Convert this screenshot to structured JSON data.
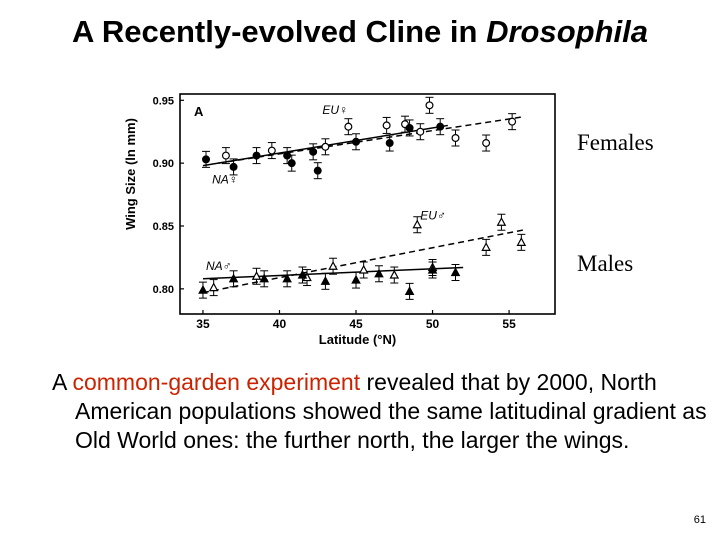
{
  "slide": {
    "title_main": "A Recently-evolved Cline in ",
    "title_italic": "Drosophila",
    "label_females": "Females",
    "label_males": "Males",
    "body_pre": "A ",
    "body_highlight": "common-garden experiment",
    "body_post": " revealed that by 2000, North American populations showed the same latitudinal gradient as Old World ones: the further north, the larger the wings.",
    "page_number": "61",
    "highlight_color": "#cc2200"
  },
  "chart_data": {
    "type": "scatter",
    "panel_letter": "A",
    "xlabel": "Latitude (°N)",
    "ylabel": "Wing Size (ln mm)",
    "xlim": [
      33.5,
      58
    ],
    "ylim": [
      0.78,
      0.955
    ],
    "xticks": [
      35,
      40,
      45,
      50,
      55
    ],
    "yticks": [
      0.8,
      0.85,
      0.9,
      0.95
    ],
    "xtick_labels": [
      "35",
      "40",
      "45",
      "50",
      "55"
    ],
    "ytick_labels": [
      "0.80",
      "0.85",
      "0.90",
      "0.95"
    ],
    "grid": false,
    "series": [
      {
        "name": "EU♀",
        "marker": "circle-open",
        "line": "dashed",
        "points": [
          [
            36.5,
            0.906
          ],
          [
            39.5,
            0.91
          ],
          [
            43,
            0.913
          ],
          [
            44.5,
            0.929
          ],
          [
            47,
            0.93
          ],
          [
            48.2,
            0.931
          ],
          [
            49.2,
            0.925
          ],
          [
            49.8,
            0.946
          ],
          [
            51.5,
            0.92
          ],
          [
            53.5,
            0.916
          ],
          [
            55.2,
            0.933
          ]
        ],
        "fit": [
          [
            36,
            0.9
          ],
          [
            56,
            0.937
          ]
        ]
      },
      {
        "name": "NA♀",
        "marker": "circle-filled",
        "line": "solid",
        "points": [
          [
            35.2,
            0.903
          ],
          [
            37,
            0.897
          ],
          [
            38.5,
            0.906
          ],
          [
            40.5,
            0.906
          ],
          [
            40.8,
            0.9
          ],
          [
            42.2,
            0.909
          ],
          [
            42.5,
            0.894
          ],
          [
            45,
            0.917
          ],
          [
            47.2,
            0.916
          ],
          [
            48.5,
            0.928
          ],
          [
            50.5,
            0.929
          ]
        ],
        "fit": [
          [
            35,
            0.898
          ],
          [
            51,
            0.93
          ]
        ]
      },
      {
        "name": "EU♂",
        "marker": "triangle-open",
        "line": "dashed",
        "points": [
          [
            35.7,
            0.801
          ],
          [
            38.5,
            0.81
          ],
          [
            41.8,
            0.809
          ],
          [
            43.5,
            0.818
          ],
          [
            45.5,
            0.815
          ],
          [
            47.5,
            0.811
          ],
          [
            49,
            0.851
          ],
          [
            50,
            0.817
          ],
          [
            53.5,
            0.833
          ],
          [
            54.5,
            0.853
          ],
          [
            55.8,
            0.837
          ]
        ],
        "fit": [
          [
            35,
            0.797
          ],
          [
            56,
            0.847
          ]
        ]
      },
      {
        "name": "NA♂",
        "marker": "triangle-filled",
        "line": "solid",
        "points": [
          [
            35,
            0.799
          ],
          [
            37,
            0.808
          ],
          [
            39,
            0.808
          ],
          [
            40.5,
            0.808
          ],
          [
            41.5,
            0.811
          ],
          [
            43,
            0.806
          ],
          [
            45,
            0.807
          ],
          [
            46.5,
            0.812
          ],
          [
            48.5,
            0.798
          ],
          [
            50,
            0.815
          ],
          [
            51.5,
            0.813
          ]
        ],
        "fit": [
          [
            35,
            0.808
          ],
          [
            52,
            0.817
          ]
        ]
      }
    ]
  }
}
